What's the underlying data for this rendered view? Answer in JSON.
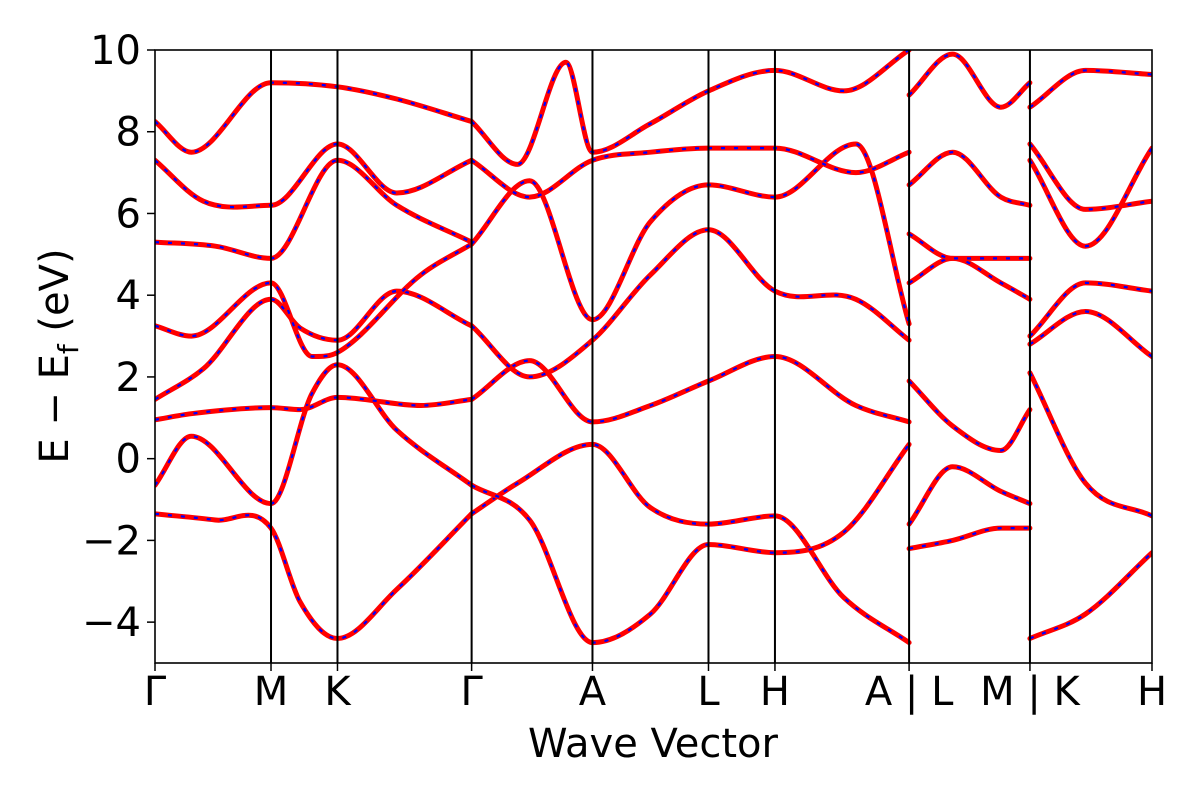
{
  "chart_data": {
    "type": "line",
    "title": "",
    "xlabel": "Wave Vector",
    "ylabel": "E − E",
    "ylabel_sub": "f",
    "ylabel_unit": " (eV)",
    "ylim": [
      -5,
      10
    ],
    "yticks": [
      -4,
      -2,
      0,
      2,
      4,
      6,
      8,
      10
    ],
    "ytick_labels": [
      "−4",
      "−2",
      "0",
      "2",
      "4",
      "6",
      "8",
      "10"
    ],
    "x_range": [
      0,
      8.25
    ],
    "kpoints": [
      {
        "x": 0.0,
        "label": "Γ"
      },
      {
        "x": 0.96,
        "label": "M"
      },
      {
        "x": 1.51,
        "label": "K"
      },
      {
        "x": 2.62,
        "label": "Γ"
      },
      {
        "x": 3.62,
        "label": "A"
      },
      {
        "x": 4.58,
        "label": "L"
      },
      {
        "x": 5.13,
        "label": "H"
      },
      {
        "x": 6.24,
        "label": "A | L"
      },
      {
        "x": 7.24,
        "label": "M | K"
      },
      {
        "x": 8.25,
        "label": "H"
      }
    ],
    "grid": false,
    "colors": {
      "band_solid": "#ff0000",
      "band_dashed": "#0000ff",
      "axis": "#000000"
    },
    "series": [
      {
        "id": "b1",
        "x": [
          0.0,
          0.5,
          0.96,
          1.2,
          1.51,
          2.0,
          2.62
        ],
        "y": [
          -1.35,
          -1.5,
          -1.7,
          -3.5,
          -4.4,
          -3.2,
          -1.35
        ]
      },
      {
        "id": "b2",
        "x": [
          0.0,
          0.3,
          0.96,
          1.3,
          1.51,
          2.0,
          2.62
        ],
        "y": [
          -0.65,
          0.55,
          -1.1,
          1.6,
          2.3,
          0.7,
          -0.65
        ]
      },
      {
        "id": "b3",
        "x": [
          0.0,
          0.3,
          0.96,
          1.2,
          1.51,
          2.2,
          2.62
        ],
        "y": [
          0.95,
          1.1,
          1.25,
          1.2,
          1.5,
          1.3,
          1.45
        ]
      },
      {
        "id": "b4",
        "x": [
          0.0,
          0.4,
          0.96,
          1.2,
          1.51,
          2.0,
          2.62
        ],
        "y": [
          1.45,
          2.2,
          3.9,
          3.2,
          2.9,
          4.1,
          3.25
        ]
      },
      {
        "id": "b5",
        "x": [
          0.0,
          0.3,
          0.96,
          1.3,
          1.51,
          2.2,
          2.62
        ],
        "y": [
          3.25,
          3.0,
          4.3,
          2.5,
          2.6,
          4.5,
          5.25
        ]
      },
      {
        "id": "b6",
        "x": [
          0.0,
          0.5,
          0.96,
          1.51,
          2.0,
          2.62
        ],
        "y": [
          5.3,
          5.2,
          4.9,
          7.3,
          6.2,
          5.3
        ]
      },
      {
        "id": "b7",
        "x": [
          0.0,
          0.4,
          0.96,
          1.51,
          2.0,
          2.62
        ],
        "y": [
          7.3,
          6.3,
          6.2,
          7.7,
          6.5,
          7.3
        ]
      },
      {
        "id": "b8",
        "x": [
          0.0,
          0.3,
          0.96,
          1.51,
          2.0,
          2.62
        ],
        "y": [
          8.25,
          7.5,
          9.2,
          9.1,
          8.8,
          8.25
        ]
      },
      {
        "id": "b9",
        "x": [
          2.62,
          3.0,
          3.62,
          4.1,
          4.58,
          5.13,
          5.7,
          6.24
        ],
        "y": [
          -1.35,
          -0.6,
          0.35,
          -1.2,
          -1.6,
          -1.4,
          -3.4,
          -4.5
        ]
      },
      {
        "id": "b10",
        "x": [
          2.62,
          3.1,
          3.62,
          4.1,
          4.58,
          5.13,
          5.7,
          6.24
        ],
        "y": [
          -0.65,
          -1.5,
          -4.5,
          -3.8,
          -2.1,
          -2.3,
          -1.8,
          0.35
        ]
      },
      {
        "id": "b11",
        "x": [
          2.62,
          3.1,
          3.62,
          4.1,
          4.58,
          5.13,
          5.8,
          6.24
        ],
        "y": [
          1.45,
          2.4,
          0.9,
          1.3,
          1.9,
          2.5,
          1.3,
          0.9
        ]
      },
      {
        "id": "b12",
        "x": [
          2.62,
          3.1,
          3.62,
          4.1,
          4.58,
          5.13,
          5.8,
          6.24
        ],
        "y": [
          3.25,
          2.0,
          2.9,
          4.5,
          5.6,
          4.1,
          3.9,
          2.9
        ]
      },
      {
        "id": "b13",
        "x": [
          2.62,
          3.1,
          3.62,
          4.1,
          4.58,
          5.13,
          5.8,
          6.24
        ],
        "y": [
          5.25,
          6.8,
          3.4,
          5.8,
          6.7,
          6.4,
          7.7,
          3.3
        ]
      },
      {
        "id": "b14",
        "x": [
          2.62,
          3.1,
          3.62,
          4.1,
          4.58,
          5.13,
          5.8,
          6.24
        ],
        "y": [
          7.3,
          6.4,
          7.3,
          7.5,
          7.6,
          7.6,
          7.0,
          7.5
        ]
      },
      {
        "id": "b15",
        "x": [
          2.62,
          3.0,
          3.4,
          3.62,
          4.1,
          4.58,
          5.13,
          5.7,
          6.24
        ],
        "y": [
          8.25,
          7.2,
          9.7,
          7.5,
          8.2,
          9.0,
          9.5,
          9.0,
          10.0
        ]
      },
      {
        "id": "b16",
        "x": [
          6.24,
          6.6,
          7.0,
          7.24
        ],
        "y": [
          -2.2,
          -2.0,
          -1.7,
          -1.7
        ]
      },
      {
        "id": "b17",
        "x": [
          6.24,
          6.6,
          7.0,
          7.24
        ],
        "y": [
          -1.6,
          -0.2,
          -0.8,
          -1.1
        ]
      },
      {
        "id": "b18",
        "x": [
          6.24,
          6.6,
          7.0,
          7.24
        ],
        "y": [
          1.9,
          0.8,
          0.2,
          1.2
        ]
      },
      {
        "id": "b19",
        "x": [
          6.24,
          6.6,
          7.0,
          7.24
        ],
        "y": [
          4.3,
          4.9,
          4.3,
          3.9
        ]
      },
      {
        "id": "b20",
        "x": [
          6.24,
          6.6,
          7.0,
          7.24
        ],
        "y": [
          5.5,
          4.9,
          4.9,
          4.9
        ]
      },
      {
        "id": "b21",
        "x": [
          6.24,
          6.6,
          7.0,
          7.24
        ],
        "y": [
          6.7,
          7.5,
          6.4,
          6.2
        ]
      },
      {
        "id": "b22",
        "x": [
          6.24,
          6.6,
          7.0,
          7.24
        ],
        "y": [
          8.9,
          9.9,
          8.6,
          9.2
        ]
      },
      {
        "id": "b23",
        "x": [
          7.24,
          7.7,
          8.25
        ],
        "y": [
          -4.4,
          -3.8,
          -2.3
        ]
      },
      {
        "id": "b24",
        "x": [
          7.24,
          7.7,
          8.25
        ],
        "y": [
          2.1,
          -0.6,
          -1.4
        ]
      },
      {
        "id": "b25",
        "x": [
          7.24,
          7.7,
          8.25
        ],
        "y": [
          2.8,
          3.6,
          2.5
        ]
      },
      {
        "id": "b26",
        "x": [
          7.24,
          7.7,
          8.25
        ],
        "y": [
          3.0,
          4.3,
          4.1
        ]
      },
      {
        "id": "b27",
        "x": [
          7.24,
          7.7,
          8.25
        ],
        "y": [
          7.3,
          5.2,
          7.6
        ]
      },
      {
        "id": "b28",
        "x": [
          7.24,
          7.7,
          8.25
        ],
        "y": [
          7.7,
          6.1,
          6.3
        ]
      },
      {
        "id": "b29",
        "x": [
          7.24,
          7.7,
          8.25
        ],
        "y": [
          8.6,
          9.5,
          9.4
        ]
      }
    ]
  }
}
